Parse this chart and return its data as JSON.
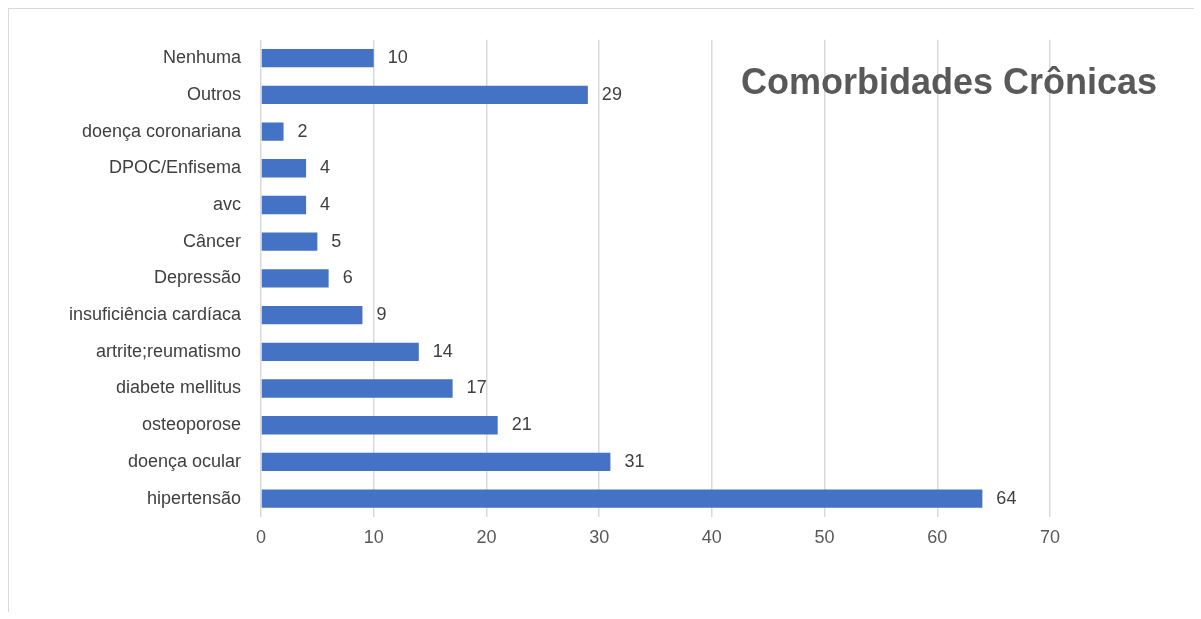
{
  "chart_data": {
    "type": "bar",
    "orientation": "horizontal",
    "title": "Comorbidades Crônicas",
    "categories": [
      "Nenhuma",
      "Outros",
      "doença coronariana",
      "DPOC/Enfisema",
      "avc",
      "Câncer",
      "Depressão",
      "insuficiência cardíaca",
      "artrite;reumatismo",
      "diabete mellitus",
      "osteoporose",
      "doença ocular",
      "hipertensão"
    ],
    "values": [
      10,
      29,
      2,
      4,
      4,
      5,
      6,
      9,
      14,
      17,
      21,
      31,
      64
    ],
    "color": "#4472c4",
    "xlim": [
      0,
      70
    ],
    "xticks": [
      0,
      10,
      20,
      30,
      40,
      50,
      60,
      70
    ],
    "grid": "x",
    "data_labels": true,
    "legend": false
  }
}
